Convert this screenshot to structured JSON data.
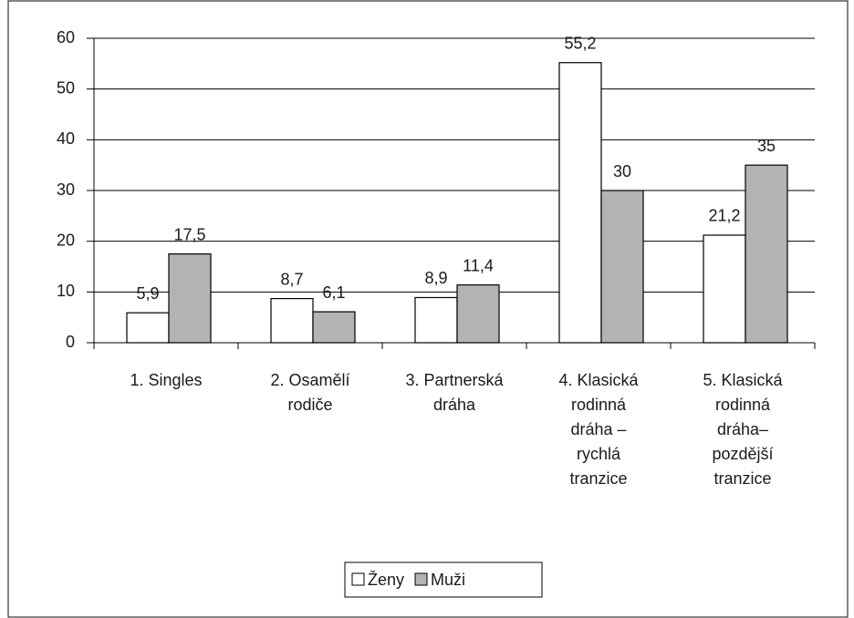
{
  "chart_data": {
    "type": "bar",
    "categories": [
      [
        "1. Singles"
      ],
      [
        "2. Osamělí",
        "rodiče"
      ],
      [
        "3. Partnerská",
        "dráha"
      ],
      [
        "4. Klasická",
        "rodinná",
        "dráha –",
        "rychlá",
        "tranzice"
      ],
      [
        "5. Klasická",
        "rodinná",
        "dráha–",
        "pozdější",
        "tranzice"
      ]
    ],
    "series": [
      {
        "name": "Ženy",
        "color": "#ffffff",
        "values": [
          5.9,
          8.7,
          8.9,
          55.2,
          21.2
        ],
        "value_labels": [
          "5,9",
          "8,7",
          "8,9",
          "55,2",
          "21,2"
        ]
      },
      {
        "name": "Muži",
        "color": "#b3b3b3",
        "values": [
          17.5,
          6.1,
          11.4,
          30,
          35
        ],
        "value_labels": [
          "17,5",
          "6,1",
          "11,4",
          "30",
          "35"
        ]
      }
    ],
    "ylim": [
      0,
      60
    ],
    "yticks": [
      0,
      10,
      20,
      30,
      40,
      50,
      60
    ],
    "grid": true,
    "legend": "bottom"
  }
}
